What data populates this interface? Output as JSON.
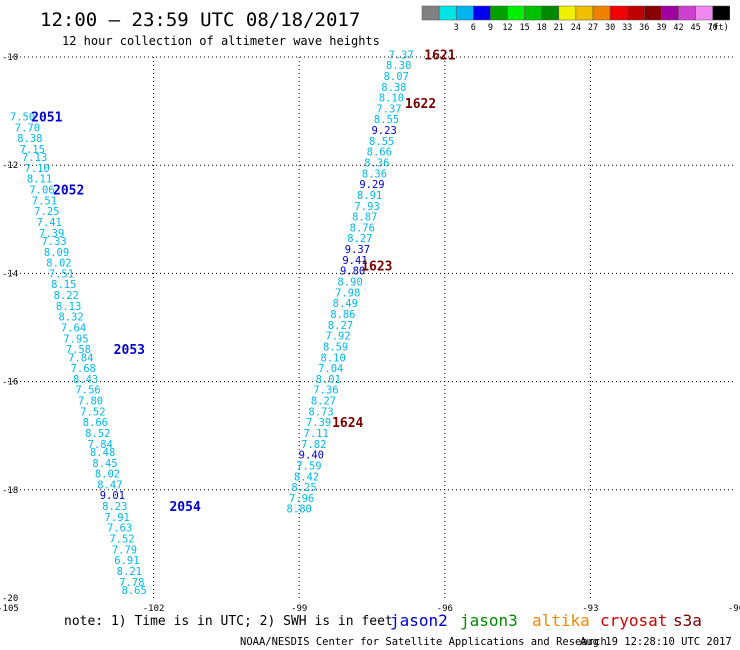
{
  "header": {
    "title": "12:00 — 23:59 UTC 08/18/2017",
    "subtitle": "12 hour collection of altimeter wave heights"
  },
  "colorbar": {
    "unit": "(ft)",
    "bins": [
      {
        "label": "",
        "color": "#808080"
      },
      {
        "label": "3",
        "color": "#00e4e4"
      },
      {
        "label": "6",
        "color": "#00b4f0"
      },
      {
        "label": "9",
        "color": "#0000f0"
      },
      {
        "label": "12",
        "color": "#00a000"
      },
      {
        "label": "15",
        "color": "#00f000"
      },
      {
        "label": "18",
        "color": "#00c000"
      },
      {
        "label": "21",
        "color": "#008800"
      },
      {
        "label": "24",
        "color": "#f0f000"
      },
      {
        "label": "27",
        "color": "#f0c000"
      },
      {
        "label": "30",
        "color": "#f08000"
      },
      {
        "label": "33",
        "color": "#f00000"
      },
      {
        "label": "36",
        "color": "#c00000"
      },
      {
        "label": "39",
        "color": "#880000"
      },
      {
        "label": "42",
        "color": "#a000a0"
      },
      {
        "label": "45",
        "color": "#d040d0"
      },
      {
        "label": "70",
        "color": "#f088f0"
      },
      {
        "label": "",
        "color": "#000000"
      }
    ]
  },
  "footer": {
    "note": "note: 1) Time is in UTC; 2) SWH is in feet",
    "credit": "NOAA/NESDIS Center for Satellite Applications and Research",
    "timestamp": "Aug 19 12:28:10 UTC 2017",
    "satellites": [
      {
        "name": "jason2",
        "color": "#0000cc"
      },
      {
        "name": "jason3",
        "color": "#008800"
      },
      {
        "name": "altika",
        "color": "#f08800"
      },
      {
        "name": "cryosat",
        "color": "#cc0000"
      },
      {
        "name": "s3a",
        "color": "#770000"
      }
    ]
  },
  "chart_data": {
    "type": "scatter",
    "title": "12:00 — 23:59 UTC 08/18/2017",
    "subtitle": "12 hour collection of altimeter wave heights",
    "xlim": [
      -105,
      -90
    ],
    "ylim": [
      -20,
      -10
    ],
    "x_ticks": [
      -105,
      -102,
      -99,
      -96,
      -93,
      -90
    ],
    "x_tick_labels": [
      "-105",
      "-102",
      "-99",
      "-96",
      "-93",
      "-90"
    ],
    "y_ticks": [
      -10,
      -12,
      -14,
      -16,
      -18,
      -20
    ],
    "y_tick_labels": [
      "-10",
      "-12",
      "-14",
      "-16",
      "-18",
      "-20"
    ],
    "grid": "dotted",
    "value_colors": {
      "light": "#00b8e8",
      "dark": "#0000cc"
    },
    "tracks": [
      {
        "satellite": "jason2",
        "points": [
          {
            "lon": -104.7,
            "lat": -11.1,
            "v": "7.50",
            "c": "light"
          },
          {
            "lon": -104.6,
            "lat": -11.3,
            "v": "7.70",
            "c": "light"
          },
          {
            "lon": -104.55,
            "lat": -11.5,
            "v": "8.38",
            "c": "light"
          },
          {
            "lon": -104.5,
            "lat": -11.7,
            "v": "7.15",
            "c": "light"
          },
          {
            "lon": -104.45,
            "lat": -11.85,
            "v": "7.13",
            "c": "light"
          },
          {
            "lon": -104.4,
            "lat": -12.05,
            "v": "7.10",
            "c": "light"
          },
          {
            "lon": -104.35,
            "lat": -12.25,
            "v": "8.11",
            "c": "light"
          },
          {
            "lon": -104.3,
            "lat": -12.45,
            "v": "7.06",
            "c": "light"
          },
          {
            "lon": -104.25,
            "lat": -12.65,
            "v": "7.51",
            "c": "light"
          },
          {
            "lon": -104.2,
            "lat": -12.85,
            "v": "7.25",
            "c": "light"
          },
          {
            "lon": -104.15,
            "lat": -13.05,
            "v": "7.41",
            "c": "light"
          },
          {
            "lon": -104.1,
            "lat": -13.25,
            "v": "7.39",
            "c": "light"
          },
          {
            "lon": -104.05,
            "lat": -13.4,
            "v": "7.33",
            "c": "light"
          },
          {
            "lon": -104.0,
            "lat": -13.6,
            "v": "8.09",
            "c": "light"
          },
          {
            "lon": -103.95,
            "lat": -13.8,
            "v": "8.02",
            "c": "light"
          },
          {
            "lon": -103.9,
            "lat": -14.0,
            "v": "7.51",
            "c": "light"
          },
          {
            "lon": -103.85,
            "lat": -14.2,
            "v": "8.15",
            "c": "light"
          },
          {
            "lon": -103.8,
            "lat": -14.4,
            "v": "8.22",
            "c": "light"
          },
          {
            "lon": -103.75,
            "lat": -14.6,
            "v": "8.13",
            "c": "light"
          },
          {
            "lon": -103.7,
            "lat": -14.8,
            "v": "8.32",
            "c": "light"
          },
          {
            "lon": -103.65,
            "lat": -15.0,
            "v": "7.64",
            "c": "light"
          },
          {
            "lon": -103.6,
            "lat": -15.2,
            "v": "7.95",
            "c": "light"
          },
          {
            "lon": -103.55,
            "lat": -15.4,
            "v": "7.58",
            "c": "light"
          },
          {
            "lon": -103.5,
            "lat": -15.55,
            "v": "7.84",
            "c": "light"
          },
          {
            "lon": -103.45,
            "lat": -15.75,
            "v": "7.68",
            "c": "light"
          },
          {
            "lon": -103.4,
            "lat": -15.95,
            "v": "8.43",
            "c": "light"
          },
          {
            "lon": -103.35,
            "lat": -16.15,
            "v": "7.56",
            "c": "light"
          },
          {
            "lon": -103.3,
            "lat": -16.35,
            "v": "7.80",
            "c": "light"
          },
          {
            "lon": -103.25,
            "lat": -16.55,
            "v": "7.52",
            "c": "light"
          },
          {
            "lon": -103.2,
            "lat": -16.75,
            "v": "8.66",
            "c": "light"
          },
          {
            "lon": -103.15,
            "lat": -16.95,
            "v": "8.52",
            "c": "light"
          },
          {
            "lon": -103.1,
            "lat": -17.15,
            "v": "7.84",
            "c": "light"
          },
          {
            "lon": -103.05,
            "lat": -17.3,
            "v": "8.48",
            "c": "light"
          },
          {
            "lon": -103.0,
            "lat": -17.5,
            "v": "8.45",
            "c": "light"
          },
          {
            "lon": -102.95,
            "lat": -17.7,
            "v": "8.02",
            "c": "light"
          },
          {
            "lon": -102.9,
            "lat": -17.9,
            "v": "8.47",
            "c": "light"
          },
          {
            "lon": -102.85,
            "lat": -18.1,
            "v": "9.01",
            "c": "dark"
          },
          {
            "lon": -102.8,
            "lat": -18.3,
            "v": "8.23",
            "c": "light"
          },
          {
            "lon": -102.75,
            "lat": -18.5,
            "v": "7.91",
            "c": "light"
          },
          {
            "lon": -102.7,
            "lat": -18.7,
            "v": "7.63",
            "c": "light"
          },
          {
            "lon": -102.65,
            "lat": -18.9,
            "v": "7.52",
            "c": "light"
          },
          {
            "lon": -102.6,
            "lat": -19.1,
            "v": "7.79",
            "c": "light"
          },
          {
            "lon": -102.55,
            "lat": -19.3,
            "v": "6.91",
            "c": "light"
          },
          {
            "lon": -102.5,
            "lat": -19.5,
            "v": "8.21",
            "c": "light"
          },
          {
            "lon": -102.45,
            "lat": -19.7,
            "v": "7.78",
            "c": "light"
          },
          {
            "lon": -102.4,
            "lat": -19.85,
            "v": "8.65",
            "c": "light"
          }
        ],
        "time_labels": [
          {
            "lon": -104.2,
            "lat": -11.1,
            "text": "2051",
            "color": "#0000cc"
          },
          {
            "lon": -103.75,
            "lat": -12.45,
            "text": "2052",
            "color": "#0000cc"
          },
          {
            "lon": -102.5,
            "lat": -15.4,
            "text": "2053",
            "color": "#0000cc"
          },
          {
            "lon": -101.35,
            "lat": -18.3,
            "text": "2054",
            "color": "#0000cc"
          }
        ]
      },
      {
        "satellite": "s3a",
        "points": [
          {
            "lon": -96.9,
            "lat": -9.95,
            "v": "7.37",
            "c": "light"
          },
          {
            "lon": -96.95,
            "lat": -10.15,
            "v": "8.30",
            "c": "light"
          },
          {
            "lon": -97.0,
            "lat": -10.35,
            "v": "8.07",
            "c": "light"
          },
          {
            "lon": -97.05,
            "lat": -10.55,
            "v": "8.38",
            "c": "light"
          },
          {
            "lon": -97.1,
            "lat": -10.75,
            "v": "8.10",
            "c": "light"
          },
          {
            "lon": -97.15,
            "lat": -10.95,
            "v": "7.37",
            "c": "light"
          },
          {
            "lon": -97.2,
            "lat": -11.15,
            "v": "8.55",
            "c": "light"
          },
          {
            "lon": -97.25,
            "lat": -11.35,
            "v": "9.23",
            "c": "dark"
          },
          {
            "lon": -97.3,
            "lat": -11.55,
            "v": "8.55",
            "c": "light"
          },
          {
            "lon": -97.35,
            "lat": -11.75,
            "v": "8.66",
            "c": "light"
          },
          {
            "lon": -97.4,
            "lat": -11.95,
            "v": "8.36",
            "c": "light"
          },
          {
            "lon": -97.45,
            "lat": -12.15,
            "v": "8.36",
            "c": "light"
          },
          {
            "lon": -97.5,
            "lat": -12.35,
            "v": "9.29",
            "c": "dark"
          },
          {
            "lon": -97.55,
            "lat": -12.55,
            "v": "8.91",
            "c": "light"
          },
          {
            "lon": -97.6,
            "lat": -12.75,
            "v": "7.93",
            "c": "light"
          },
          {
            "lon": -97.65,
            "lat": -12.95,
            "v": "8.87",
            "c": "light"
          },
          {
            "lon": -97.7,
            "lat": -13.15,
            "v": "8.76",
            "c": "light"
          },
          {
            "lon": -97.75,
            "lat": -13.35,
            "v": "8.27",
            "c": "light"
          },
          {
            "lon": -97.8,
            "lat": -13.55,
            "v": "9.37",
            "c": "dark"
          },
          {
            "lon": -97.85,
            "lat": -13.75,
            "v": "9.41",
            "c": "dark"
          },
          {
            "lon": -97.9,
            "lat": -13.95,
            "v": "9.80",
            "c": "dark"
          },
          {
            "lon": -97.95,
            "lat": -14.15,
            "v": "8.90",
            "c": "light"
          },
          {
            "lon": -98.0,
            "lat": -14.35,
            "v": "7.98",
            "c": "light"
          },
          {
            "lon": -98.05,
            "lat": -14.55,
            "v": "8.49",
            "c": "light"
          },
          {
            "lon": -98.1,
            "lat": -14.75,
            "v": "8.86",
            "c": "light"
          },
          {
            "lon": -98.15,
            "lat": -14.95,
            "v": "8.27",
            "c": "light"
          },
          {
            "lon": -98.2,
            "lat": -15.15,
            "v": "7.92",
            "c": "light"
          },
          {
            "lon": -98.25,
            "lat": -15.35,
            "v": "8.59",
            "c": "light"
          },
          {
            "lon": -98.3,
            "lat": -15.55,
            "v": "8.10",
            "c": "light"
          },
          {
            "lon": -98.35,
            "lat": -15.75,
            "v": "7.04",
            "c": "light"
          },
          {
            "lon": -98.4,
            "lat": -15.95,
            "v": "8.01",
            "c": "light"
          },
          {
            "lon": -98.45,
            "lat": -16.15,
            "v": "7.36",
            "c": "light"
          },
          {
            "lon": -98.5,
            "lat": -16.35,
            "v": "8.27",
            "c": "light"
          },
          {
            "lon": -98.55,
            "lat": -16.55,
            "v": "8.73",
            "c": "light"
          },
          {
            "lon": -98.6,
            "lat": -16.75,
            "v": "7.39",
            "c": "light"
          },
          {
            "lon": -98.65,
            "lat": -16.95,
            "v": "7.11",
            "c": "light"
          },
          {
            "lon": -98.7,
            "lat": -17.15,
            "v": "7.82",
            "c": "light"
          },
          {
            "lon": -98.75,
            "lat": -17.35,
            "v": "9.40",
            "c": "dark"
          },
          {
            "lon": -98.8,
            "lat": -17.55,
            "v": "7.59",
            "c": "light"
          },
          {
            "lon": -98.85,
            "lat": -17.75,
            "v": "8.42",
            "c": "light"
          },
          {
            "lon": -98.9,
            "lat": -17.95,
            "v": "8.25",
            "c": "light"
          },
          {
            "lon": -98.95,
            "lat": -18.15,
            "v": "7.96",
            "c": "light"
          },
          {
            "lon": -99.0,
            "lat": -18.35,
            "v": "8.80",
            "c": "light"
          }
        ],
        "time_labels": [
          {
            "lon": -96.1,
            "lat": -9.95,
            "text": "1621",
            "color": "#770000"
          },
          {
            "lon": -96.5,
            "lat": -10.85,
            "text": "1622",
            "color": "#770000"
          },
          {
            "lon": -97.4,
            "lat": -13.85,
            "text": "1623",
            "color": "#770000"
          },
          {
            "lon": -98.0,
            "lat": -16.75,
            "text": "1624",
            "color": "#770000"
          }
        ]
      }
    ]
  }
}
